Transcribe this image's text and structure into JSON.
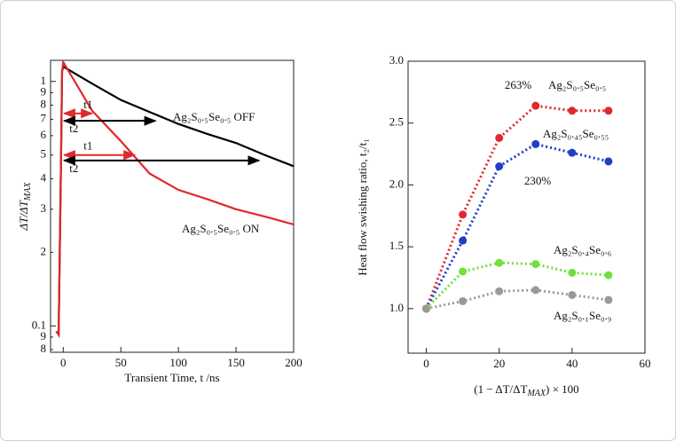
{
  "chart_data": [
    {
      "type": "line",
      "yscale": "log",
      "xlabel": "Transient Time, t /ns",
      "ylabel": [
        "ΔT/ΔT",
        "MAX"
      ],
      "xlim": [
        -11,
        200
      ],
      "ylim": [
        0.078,
        1.22
      ],
      "xticks": [
        0,
        50,
        100,
        150,
        200
      ],
      "yticks": [
        {
          "value": 0.08,
          "label": "8"
        },
        {
          "value": 0.09,
          "label": "9"
        },
        0.1,
        {
          "value": 0.2,
          "label": "2"
        },
        {
          "value": 0.3,
          "label": "3"
        },
        {
          "value": 0.4,
          "label": "4"
        },
        {
          "value": 0.5,
          "label": "5"
        },
        {
          "value": 0.6,
          "label": "6"
        },
        {
          "value": 0.7,
          "label": "7"
        },
        {
          "value": 0.8,
          "label": "8"
        },
        {
          "value": 0.9,
          "label": "9"
        },
        1
      ],
      "series": [
        {
          "name": "Ag₂S₀.₅Se₀.₅ OFF",
          "color": "#000000",
          "x": [
            -6,
            -4,
            -2,
            -1,
            0,
            25,
            50,
            75,
            100,
            125,
            150,
            175,
            200
          ],
          "values": [
            0.095,
            0.092,
            0.45,
            1.1,
            1.15,
            0.98,
            0.84,
            0.75,
            0.67,
            0.61,
            0.56,
            0.5,
            0.45
          ]
        },
        {
          "name": "Ag₂S₀.₅Se₀.₅ ON",
          "color": "#e0282d",
          "x": [
            -6,
            -4,
            -2,
            -1,
            0,
            25,
            50,
            75,
            100,
            125,
            150,
            175,
            200
          ],
          "values": [
            0.095,
            0.092,
            0.45,
            1.1,
            1.2,
            0.76,
            0.57,
            0.42,
            0.36,
            0.33,
            0.3,
            0.28,
            0.26
          ]
        }
      ],
      "annotations": [
        {
          "text": "t1",
          "color": "#e0282d",
          "x": [
            0,
            25
          ],
          "y": 0.74
        },
        {
          "text": "t2",
          "color": "#000000",
          "x": [
            0,
            80
          ],
          "y": 0.69
        },
        {
          "text": "t1",
          "color": "#e0282d",
          "x": [
            0,
            62
          ],
          "y": 0.5
        },
        {
          "text": "t2",
          "color": "#000000",
          "x": [
            0,
            170
          ],
          "y": 0.475
        }
      ]
    },
    {
      "type": "line",
      "style": "dotted",
      "xlabel": [
        "(1 − ΔT/ΔT",
        "MAX",
        ") × 100"
      ],
      "ylabel": "Heat flow swishing ratio, t₂/t₁",
      "xlim": [
        -5,
        60
      ],
      "ylim": [
        0.64,
        3.0
      ],
      "xticks": [
        0,
        20,
        40,
        60
      ],
      "yticks": [
        {
          "value": 1,
          "label": "1.0"
        },
        1.5,
        {
          "value": 2,
          "label": "2.0"
        },
        2.5,
        {
          "value": 3,
          "label": "3.0"
        }
      ],
      "x": [
        0,
        10,
        20,
        30,
        40,
        50
      ],
      "series": [
        {
          "name": "Ag₂S₀.₅Se₀.₅",
          "color": "#e0282d",
          "values": [
            1.0,
            1.76,
            2.38,
            2.64,
            2.6,
            2.6
          ]
        },
        {
          "name": "Ag₂S₀.₄₅Se₀.₅₅",
          "color": "#1f3fc4",
          "values": [
            1.0,
            1.55,
            2.15,
            2.33,
            2.26,
            2.19
          ]
        },
        {
          "name": "Ag₂S₀.₄Se₀.₆",
          "color": "#6fe03c",
          "values": [
            1.0,
            1.3,
            1.37,
            1.36,
            1.29,
            1.27
          ]
        },
        {
          "name": "Ag₂S₀.₁Se₀.₉",
          "color": "#999999",
          "values": [
            1.0,
            1.06,
            1.14,
            1.15,
            1.11,
            1.07
          ]
        }
      ],
      "annotations": [
        {
          "text": "263%",
          "color": "#e0282d"
        },
        {
          "text": "230%",
          "color": "#1f3fc4"
        }
      ]
    }
  ]
}
